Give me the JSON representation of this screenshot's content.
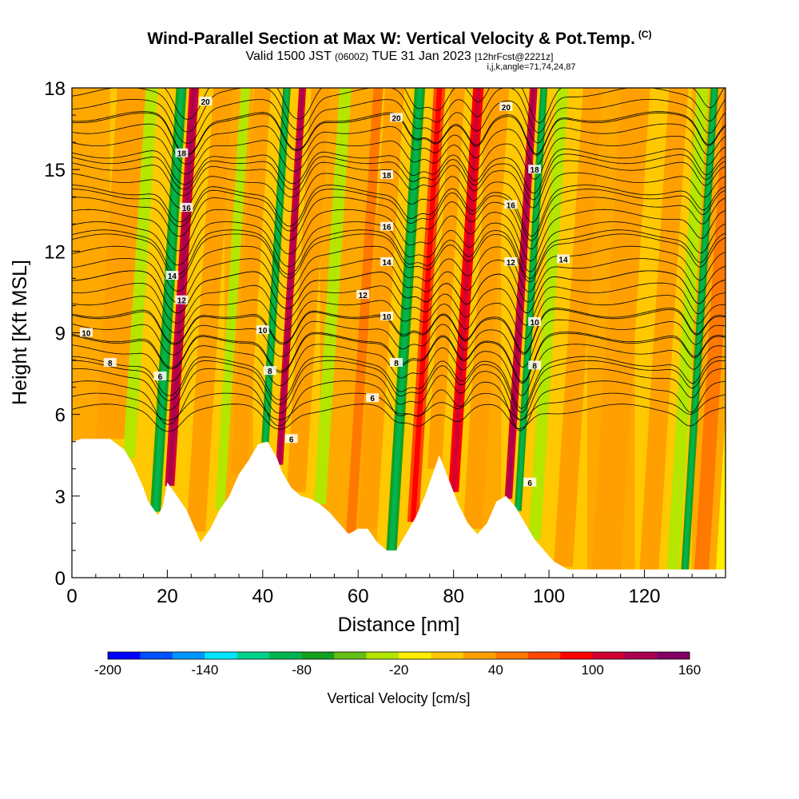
{
  "title": {
    "main": "Wind-Parallel Section at Max W: Vertical Velocity & Pot.Temp.",
    "main_tag": "(C)",
    "valid_prefix": "Valid 1500 JST",
    "valid_zulu": "(0600Z)",
    "valid_date": "TUE 31 Jan 2023",
    "forecast_tag": "[12hrFcst@2221z]",
    "indices": "i,j,k,angle=71,74,24,87"
  },
  "chart_data": {
    "type": "heatmap",
    "xlabel": "Distance [nm]",
    "ylabel": "Height [Kft MSL]",
    "xlim": [
      0,
      137
    ],
    "ylim": [
      0,
      18
    ],
    "x_ticks": [
      0,
      20,
      40,
      60,
      80,
      100,
      120
    ],
    "y_ticks": [
      0,
      3,
      6,
      9,
      12,
      15,
      18
    ],
    "grid": false,
    "colorbar": {
      "label": "Vertical Velocity [cm/s]",
      "min": -200,
      "max": 160,
      "step": 20,
      "ticks": [
        -200,
        -140,
        -80,
        -20,
        40,
        100,
        160
      ],
      "colors": [
        "#0000ff",
        "#0050ff",
        "#0096ff",
        "#00e6ff",
        "#00d28c",
        "#00b450",
        "#14a01e",
        "#64be14",
        "#b4e600",
        "#ffee00",
        "#ffc800",
        "#ffa000",
        "#ff7800",
        "#ff4600",
        "#ff0000",
        "#d20032",
        "#aa0050",
        "#820064"
      ]
    },
    "terrain_profile": [
      [
        0,
        5
      ],
      [
        2,
        5.1
      ],
      [
        8,
        5.1
      ],
      [
        11,
        4.7
      ],
      [
        13,
        4.1
      ],
      [
        15,
        3.3
      ],
      [
        16,
        2.8
      ],
      [
        18,
        2.3
      ],
      [
        19,
        2.6
      ],
      [
        20,
        3.5
      ],
      [
        22,
        3.0
      ],
      [
        24,
        2.5
      ],
      [
        26,
        1.7
      ],
      [
        27,
        1.3
      ],
      [
        29,
        1.8
      ],
      [
        31,
        2.5
      ],
      [
        33,
        3.0
      ],
      [
        35,
        3.8
      ],
      [
        37,
        4.3
      ],
      [
        39,
        4.9
      ],
      [
        41,
        5.0
      ],
      [
        43,
        4.4
      ],
      [
        44,
        3.9
      ],
      [
        46,
        3.3
      ],
      [
        48,
        3.0
      ],
      [
        50,
        2.9
      ],
      [
        52,
        2.7
      ],
      [
        54,
        2.4
      ],
      [
        56,
        2.0
      ],
      [
        58,
        1.6
      ],
      [
        60,
        1.8
      ],
      [
        62,
        1.8
      ],
      [
        64,
        1.3
      ],
      [
        66,
        1.0
      ],
      [
        68,
        1.0
      ],
      [
        70,
        1.6
      ],
      [
        72,
        2.2
      ],
      [
        74,
        3.0
      ],
      [
        76,
        4.0
      ],
      [
        77,
        4.5
      ],
      [
        79,
        3.6
      ],
      [
        81,
        2.7
      ],
      [
        83,
        2.0
      ],
      [
        85,
        1.6
      ],
      [
        87,
        2.0
      ],
      [
        89,
        2.8
      ],
      [
        91,
        3.0
      ],
      [
        93,
        2.6
      ],
      [
        95,
        2.0
      ],
      [
        97,
        1.4
      ],
      [
        99,
        1.0
      ],
      [
        101,
        0.6
      ],
      [
        104,
        0.3
      ],
      [
        137,
        0.3
      ]
    ],
    "vertical_velocity_bands": [
      {
        "x": 8,
        "w": 6,
        "v": 20
      },
      {
        "x": 12,
        "w": 2.5,
        "v": -40
      },
      {
        "x": 17.5,
        "w": 2.2,
        "v": -70
      },
      {
        "x": 20.5,
        "w": 2.0,
        "v": 110
      },
      {
        "x": 26,
        "w": 4,
        "v": 30
      },
      {
        "x": 31,
        "w": 2,
        "v": -30
      },
      {
        "x": 35,
        "w": 3.5,
        "v": 20
      },
      {
        "x": 40.5,
        "w": 1.6,
        "v": -80
      },
      {
        "x": 43.5,
        "w": 1.5,
        "v": 110
      },
      {
        "x": 47,
        "w": 4,
        "v": 30
      },
      {
        "x": 52,
        "w": 2.5,
        "v": -30
      },
      {
        "x": 58.5,
        "w": 2.0,
        "v": 50
      },
      {
        "x": 62,
        "w": 4,
        "v": 30
      },
      {
        "x": 67,
        "w": 2.2,
        "v": -70
      },
      {
        "x": 71.5,
        "w": 2.4,
        "v": 70
      },
      {
        "x": 76,
        "w": 3,
        "v": 20
      },
      {
        "x": 80,
        "w": 2.2,
        "v": 80
      },
      {
        "x": 84,
        "w": 4,
        "v": 30
      },
      {
        "x": 91.5,
        "w": 1.6,
        "v": 110
      },
      {
        "x": 93.5,
        "w": 1.5,
        "v": -70
      },
      {
        "x": 97,
        "w": 2.5,
        "v": -30
      },
      {
        "x": 103,
        "w": 4,
        "v": 20
      },
      {
        "x": 112,
        "w": 6,
        "v": 30
      },
      {
        "x": 121,
        "w": 4,
        "v": 20
      },
      {
        "x": 126,
        "w": 2.5,
        "v": -30
      },
      {
        "x": 128.5,
        "w": 1.6,
        "v": -80
      },
      {
        "x": 132,
        "w": 3,
        "v": 40
      },
      {
        "x": 136,
        "w": 2,
        "v": -20
      }
    ],
    "potential_temperature_contours": {
      "levels": [
        6,
        8,
        10,
        12,
        14,
        16,
        18,
        20
      ],
      "level_heights": {
        "6": 6.2,
        "8": 7.8,
        "9": 8.8,
        "10": 9.7,
        "12": 11.1,
        "14": 12.6,
        "16": 14.1,
        "18": 15.4,
        "20": 16.9
      },
      "labels": [
        {
          "text": "20",
          "x": 28,
          "y": 17.5
        },
        {
          "text": "20",
          "x": 68,
          "y": 16.9
        },
        {
          "text": "20",
          "x": 91,
          "y": 17.3
        },
        {
          "text": "18",
          "x": 23,
          "y": 15.6
        },
        {
          "text": "18",
          "x": 66,
          "y": 14.8
        },
        {
          "text": "18",
          "x": 97,
          "y": 15.0
        },
        {
          "text": "16",
          "x": 24,
          "y": 13.6
        },
        {
          "text": "16",
          "x": 66,
          "y": 12.9
        },
        {
          "text": "16",
          "x": 92,
          "y": 13.7
        },
        {
          "text": "14",
          "x": 21,
          "y": 11.1
        },
        {
          "text": "14",
          "x": 66,
          "y": 11.6
        },
        {
          "text": "14",
          "x": 103,
          "y": 11.7
        },
        {
          "text": "12",
          "x": 23,
          "y": 10.2
        },
        {
          "text": "12",
          "x": 61,
          "y": 10.4
        },
        {
          "text": "12",
          "x": 92,
          "y": 11.6
        },
        {
          "text": "10",
          "x": 3,
          "y": 9.0
        },
        {
          "text": "10",
          "x": 40,
          "y": 9.1
        },
        {
          "text": "10",
          "x": 66,
          "y": 9.6
        },
        {
          "text": "10",
          "x": 97,
          "y": 9.4
        },
        {
          "text": "8",
          "x": 8,
          "y": 7.9
        },
        {
          "text": "8",
          "x": 41.5,
          "y": 7.6
        },
        {
          "text": "8",
          "x": 68,
          "y": 7.9
        },
        {
          "text": "8",
          "x": 97,
          "y": 7.8
        },
        {
          "text": "6",
          "x": 18.5,
          "y": 7.4
        },
        {
          "text": "6",
          "x": 46,
          "y": 5.1
        },
        {
          "text": "6",
          "x": 63,
          "y": 6.6
        },
        {
          "text": "6",
          "x": 96,
          "y": 3.5
        }
      ]
    }
  }
}
